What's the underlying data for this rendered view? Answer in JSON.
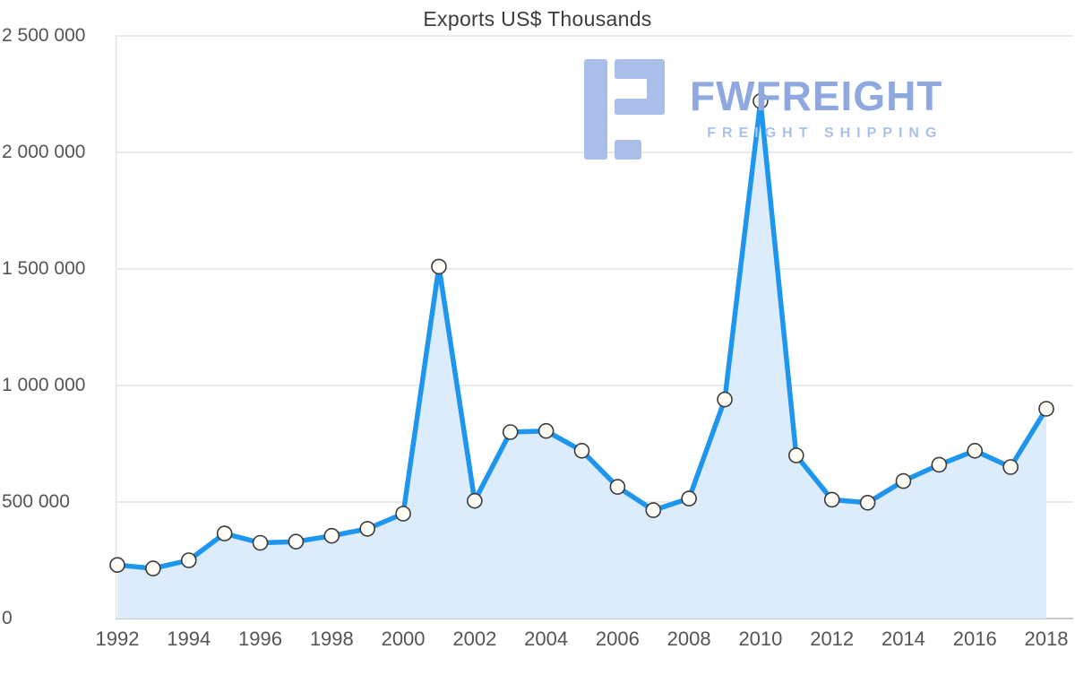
{
  "title": "Exports US$ Thousands",
  "watermark": {
    "brand": "FWFREIGHT",
    "tagline": "FREIGHT SHIPPING",
    "icon_color": "#a9bfe9",
    "brand_color": "#8fa9e0",
    "tagline_color": "#a9c2ec"
  },
  "colors": {
    "line": "#1e96ee",
    "area": "#dcecfa",
    "marker_fill": "#fffdf5",
    "marker_stroke": "#3a3a3a",
    "grid": "#e3e3e3",
    "axis": "#c9c9c9",
    "tick_text": "#555555"
  },
  "chart_data": {
    "type": "area",
    "title": "Exports US$ Thousands",
    "xlabel": "",
    "ylabel": "",
    "ylim": [
      0,
      2500000
    ],
    "grid": true,
    "legend": "none",
    "x": [
      1992,
      1993,
      1994,
      1995,
      1996,
      1997,
      1998,
      1999,
      2000,
      2001,
      2002,
      2003,
      2004,
      2005,
      2006,
      2007,
      2008,
      2009,
      2010,
      2011,
      2012,
      2013,
      2014,
      2015,
      2016,
      2017,
      2018
    ],
    "values": [
      230000,
      215000,
      250000,
      365000,
      325000,
      330000,
      355000,
      385000,
      450000,
      1510000,
      505000,
      800000,
      805000,
      720000,
      565000,
      465000,
      515000,
      940000,
      2220000,
      700000,
      510000,
      497000,
      590000,
      660000,
      720000,
      650000,
      900000
    ],
    "y_tick_values": [
      0,
      500000,
      1000000,
      1500000,
      2000000,
      2500000
    ],
    "y_tick_labels": [
      "0",
      "500 000",
      "1 000 000",
      "1 500 000",
      "2 000 000",
      "2 500 000"
    ],
    "x_tick_labels": [
      "1992",
      "1994",
      "1996",
      "1998",
      "2000",
      "2002",
      "2004",
      "2006",
      "2008",
      "2010",
      "2012",
      "2014",
      "2016",
      "2018"
    ]
  }
}
